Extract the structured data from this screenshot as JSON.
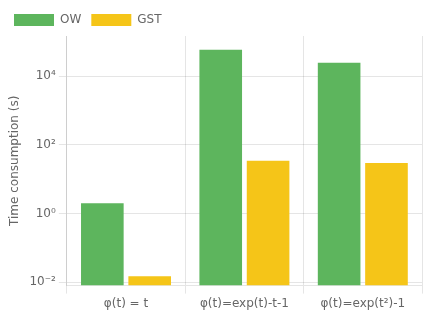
{
  "chart_data": {
    "type": "bar",
    "categories": [
      "φ(t) = t",
      "φ(t)=exp(t)-t-1",
      "φ(t)=exp(t²)-1"
    ],
    "series": [
      {
        "name": "OW",
        "color": "#5db55d",
        "values": [
          2.0,
          60000,
          25000
        ]
      },
      {
        "name": "GST",
        "color": "#f5c518",
        "values": [
          0.015,
          35,
          30
        ]
      }
    ],
    "ylabel": "Time consumption (s)",
    "ylim": [
      0.008,
      150000
    ],
    "yticks": [
      {
        "value": 0.01,
        "label": "10⁻²"
      },
      {
        "value": 1,
        "label": "10⁰"
      },
      {
        "value": 100,
        "label": "10²"
      },
      {
        "value": 10000,
        "label": "10⁴"
      }
    ],
    "log": "y",
    "grid": true,
    "legend": "upper left"
  }
}
